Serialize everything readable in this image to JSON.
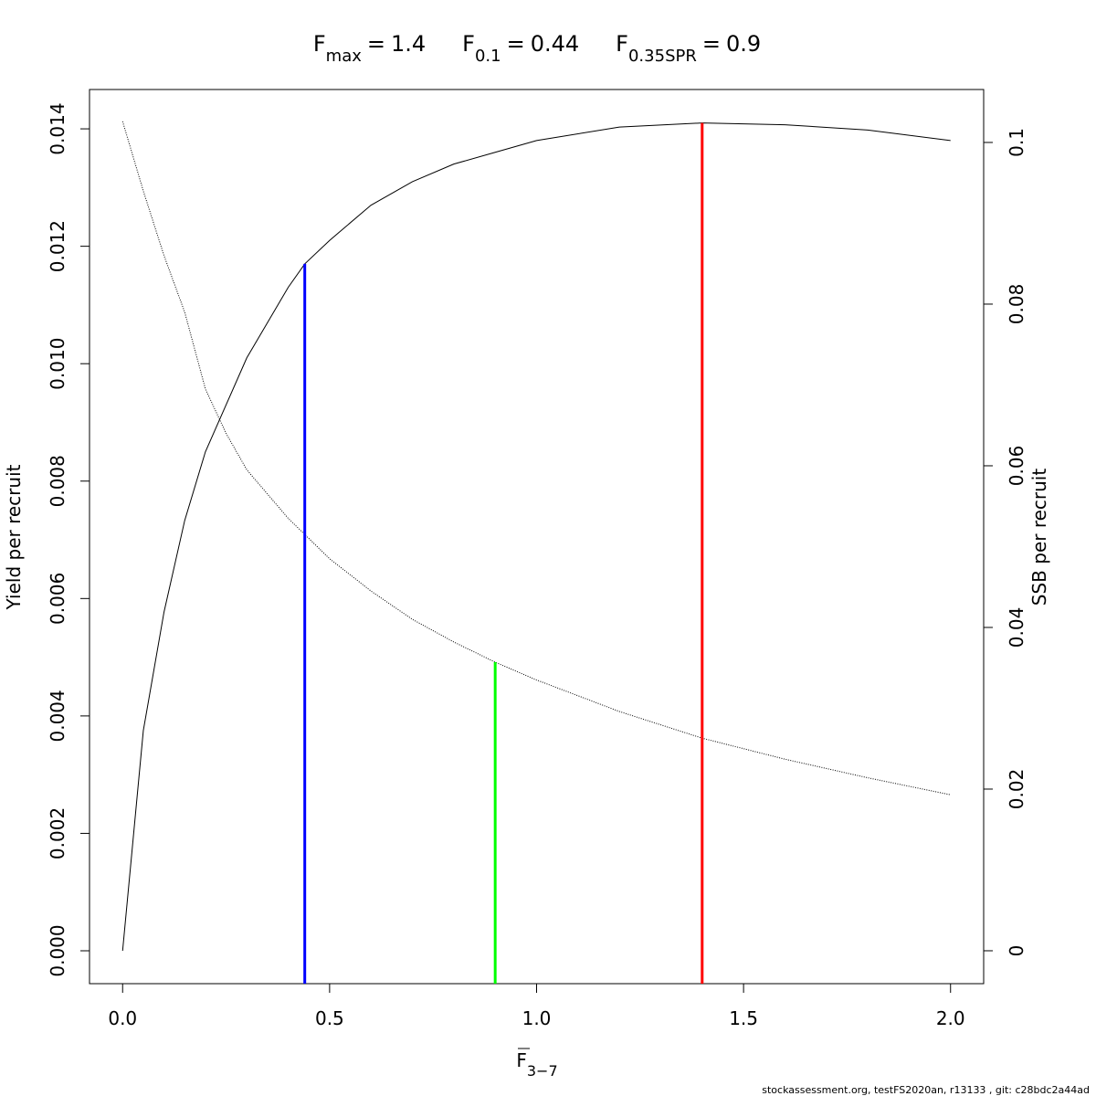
{
  "chart_data": {
    "type": "line",
    "title_parts": [
      {
        "label": "F",
        "subscript": "max",
        "value": 1.4,
        "color": "#ff0000",
        "ends_on": 0
      },
      {
        "label": "F",
        "subscript": "0.1",
        "value": 0.44,
        "color": "#0000ff",
        "ends_on": 0
      },
      {
        "label": "F",
        "subscript": "0.35SPR",
        "value": 0.9,
        "color": "#00ff00",
        "ends_on": 1
      }
    ],
    "equals": "=",
    "xlabel": {
      "label": "F",
      "subscript": "3−7"
    },
    "ylabel": "Yield per recruit",
    "y2label": "SSB per recruit",
    "footer": "stockassessment.org, testFS2020an, r13133 , git: c28bdc2a44ad",
    "x": [
      0,
      0.05,
      0.1,
      0.15,
      0.2,
      0.25,
      0.3,
      0.4,
      0.44,
      0.5,
      0.6,
      0.7,
      0.8,
      0.9,
      1.0,
      1.2,
      1.4,
      1.6,
      1.8,
      2.0
    ],
    "series": [
      {
        "name": "Yield per recruit",
        "color": "#000000",
        "line_style": "solid",
        "values": [
          0,
          0.00375,
          0.00577,
          0.00733,
          0.0085,
          0.0093,
          0.0101,
          0.0113,
          0.0117,
          0.0121,
          0.0127,
          0.0131,
          0.0134,
          0.0136,
          0.0138,
          0.01403,
          0.0141,
          0.01407,
          0.01398,
          0.0138
        ]
      },
      {
        "name": "SSB per recruit",
        "color": "#000000",
        "line_style": "dotted",
        "axis": "y2",
        "values": [
          0.1026,
          0.094,
          0.086,
          0.079,
          0.0695,
          0.064,
          0.0595,
          0.0535,
          0.0515,
          0.0485,
          0.0445,
          0.041,
          0.0382,
          0.0357,
          0.0335,
          0.0296,
          0.0263,
          0.0237,
          0.0214,
          0.0193
        ]
      }
    ],
    "xlim": [
      -0.08,
      2.08
    ],
    "xticks": [
      {
        "value": 0,
        "label": "0.0"
      },
      0.5,
      {
        "value": 1,
        "label": "1.0"
      },
      1.5,
      {
        "value": 2,
        "label": "2.0"
      }
    ],
    "ylim": [
      -0.00056,
      0.01467
    ],
    "yticks": [
      {
        "value": 0,
        "label": "0.000"
      },
      {
        "value": 0.002,
        "label": "0.002"
      },
      {
        "value": 0.004,
        "label": "0.004"
      },
      {
        "value": 0.006,
        "label": "0.006"
      },
      {
        "value": 0.008,
        "label": "0.008"
      },
      {
        "value": 0.01,
        "label": "0.010"
      },
      {
        "value": 0.012,
        "label": "0.012"
      },
      {
        "value": 0.014,
        "label": "0.014"
      }
    ],
    "y2lim": [
      -0.00407,
      0.10655
    ],
    "y2ticks": [
      0,
      0.02,
      0.04,
      0.06,
      0.08,
      0.1
    ]
  }
}
